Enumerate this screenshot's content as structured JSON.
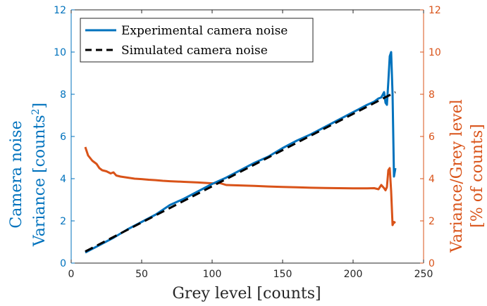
{
  "chart_data": {
    "type": "line",
    "xlabel": "Grey level [counts]",
    "ylabel_left_line1": "Camera noise",
    "ylabel_left_line2_prefix": "Variance [counts",
    "ylabel_left_line2_sup": "2",
    "ylabel_left_line2_suffix": "]",
    "ylabel_right_line1": "Variance/Grey level",
    "ylabel_right_line2": "[% of counts]",
    "xlim": [
      0,
      250
    ],
    "ylim_left": [
      0,
      12
    ],
    "ylim_right": [
      0,
      12
    ],
    "xticks": [
      0,
      50,
      100,
      150,
      200,
      250
    ],
    "yticks_left": [
      0,
      2,
      4,
      6,
      8,
      10,
      12
    ],
    "yticks_right": [
      0,
      2,
      4,
      6,
      8,
      10,
      12
    ],
    "grid": false,
    "legend_position": "top-left",
    "colors": {
      "left_axis": "#0072BD",
      "right_axis": "#D95319",
      "experimental": "#0072BD",
      "simulated": "#000000",
      "ratio": "#D95319"
    },
    "series": [
      {
        "name": "Experimental camera noise",
        "axis": "left",
        "style": "solid",
        "x": [
          10,
          20,
          30,
          40,
          50,
          60,
          70,
          80,
          90,
          100,
          110,
          120,
          130,
          140,
          150,
          160,
          170,
          180,
          190,
          200,
          210,
          215,
          218,
          220,
          222,
          223,
          224,
          225,
          226,
          227,
          228,
          229,
          230
        ],
        "y": [
          0.5,
          0.85,
          1.2,
          1.6,
          1.95,
          2.3,
          2.75,
          3.05,
          3.4,
          3.75,
          4.05,
          4.4,
          4.75,
          5.05,
          5.45,
          5.8,
          6.1,
          6.45,
          6.8,
          7.15,
          7.5,
          7.65,
          7.8,
          7.85,
          8.1,
          7.6,
          7.5,
          8.6,
          9.8,
          10.0,
          8.0,
          4.1,
          4.5
        ]
      },
      {
        "name": "Simulated camera noise",
        "axis": "left",
        "style": "dashed",
        "x": [
          10,
          230
        ],
        "y": [
          0.55,
          8.1
        ]
      },
      {
        "axis": "right",
        "style": "solid",
        "x": [
          10,
          12,
          15,
          18,
          20,
          22,
          25,
          28,
          30,
          32,
          35,
          40,
          45,
          50,
          55,
          60,
          65,
          70,
          80,
          90,
          100,
          105,
          110,
          120,
          130,
          140,
          150,
          160,
          170,
          180,
          190,
          200,
          210,
          215,
          218,
          220,
          222,
          223,
          224,
          225,
          226,
          227,
          228,
          229,
          230
        ],
        "y": [
          5.5,
          5.1,
          4.85,
          4.7,
          4.5,
          4.4,
          4.35,
          4.25,
          4.3,
          4.15,
          4.1,
          4.05,
          4.0,
          3.98,
          3.95,
          3.93,
          3.9,
          3.88,
          3.85,
          3.82,
          3.78,
          3.8,
          3.7,
          3.68,
          3.66,
          3.63,
          3.61,
          3.59,
          3.57,
          3.56,
          3.55,
          3.54,
          3.54,
          3.55,
          3.5,
          3.7,
          3.55,
          3.45,
          3.6,
          4.4,
          4.5,
          3.4,
          1.8,
          1.95,
          1.9
        ]
      }
    ]
  }
}
